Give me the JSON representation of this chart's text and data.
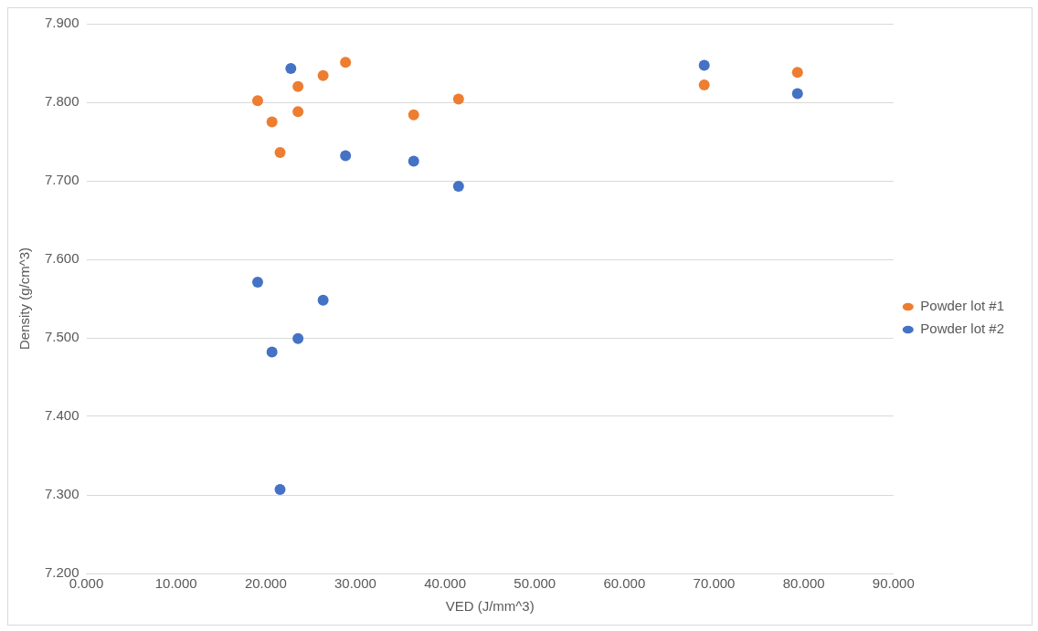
{
  "chart_data": {
    "type": "scatter",
    "xlabel": "VED (J/mm^3)",
    "ylabel": "Density (g/cm^3)",
    "series": [
      {
        "name": "Powder lot #1",
        "color": "#ed7d31",
        "x": [
          19.1,
          20.7,
          21.6,
          23.6,
          23.6,
          26.4,
          28.9,
          36.5,
          41.5,
          68.9,
          79.3
        ],
        "values": [
          7.802,
          7.775,
          7.736,
          7.82,
          7.788,
          7.834,
          7.851,
          7.784,
          7.804,
          7.822,
          7.838
        ]
      },
      {
        "name": "Powder lot #2",
        "color": "#4472c4",
        "x": [
          19.1,
          20.7,
          21.6,
          22.8,
          23.6,
          26.4,
          28.9,
          36.5,
          41.5,
          68.9,
          79.3
        ],
        "values": [
          7.571,
          7.482,
          7.307,
          7.843,
          7.499,
          7.548,
          7.732,
          7.725,
          7.693,
          7.847,
          7.811
        ]
      }
    ],
    "xlim": [
      0,
      90
    ],
    "xticks": [
      {
        "value": 0,
        "label": "0.000"
      },
      {
        "value": 10,
        "label": "10.000"
      },
      {
        "value": 20,
        "label": "20.000"
      },
      {
        "value": 30,
        "label": "30.000"
      },
      {
        "value": 40,
        "label": "40.000"
      },
      {
        "value": 50,
        "label": "50.000"
      },
      {
        "value": 60,
        "label": "60.000"
      },
      {
        "value": 70,
        "label": "70.000"
      },
      {
        "value": 80,
        "label": "80.000"
      },
      {
        "value": 90,
        "label": "90.000"
      }
    ],
    "ylim": [
      7.2,
      7.9
    ],
    "yticks": [
      {
        "value": 7.2,
        "label": "7.200"
      },
      {
        "value": 7.3,
        "label": "7.300"
      },
      {
        "value": 7.4,
        "label": "7.400"
      },
      {
        "value": 7.5,
        "label": "7.500"
      },
      {
        "value": 7.6,
        "label": "7.600"
      },
      {
        "value": 7.7,
        "label": "7.700"
      },
      {
        "value": 7.8,
        "label": "7.800"
      },
      {
        "value": 7.9,
        "label": "7.900"
      }
    ],
    "grid": "y",
    "legend": "right",
    "marker": "circle"
  }
}
